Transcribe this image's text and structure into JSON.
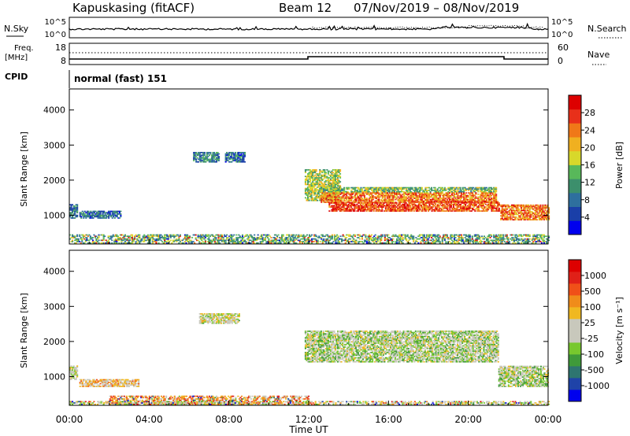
{
  "header": {
    "station": "Kapuskasing (fitACF)",
    "beam": "Beam 12",
    "dates": "07/Nov/2019 – 08/Nov/2019"
  },
  "nsky": {
    "left_label": "N.Sky",
    "right_label": "N.Search",
    "left_ticks": [
      "10^5",
      "10^0"
    ],
    "right_ticks": [
      "10^5",
      "10^0"
    ]
  },
  "freq": {
    "left_label_1": "Freq.",
    "left_label_2": "[MHz]",
    "right_label": "Nave",
    "left_ticks": [
      "18",
      "8"
    ],
    "right_ticks": [
      "60",
      "0"
    ]
  },
  "cpid": {
    "label": "CPID",
    "mode": "normal (fast) 151"
  },
  "colors": {
    "power_scale": [
      "#0000ee",
      "#1a3fa8",
      "#2e6f9e",
      "#3c8f6c",
      "#58b85a",
      "#d8d82a",
      "#f0b020",
      "#f07818",
      "#e8301a",
      "#dd0000"
    ],
    "velocity_scale": [
      "#0000ee",
      "#1f43a8",
      "#2e7570",
      "#3f9a3a",
      "#78c82e",
      "#c8c8bc",
      "#c8c8bc",
      "#f0b820",
      "#f08c1a",
      "#f05018",
      "#e02018",
      "#dd0000"
    ]
  },
  "chart_data": [
    {
      "type": "heatmap",
      "name": "power-panel",
      "ylabel": "Slant Range [km]",
      "ylim": [
        180,
        4600
      ],
      "yticks": [
        "1000",
        "2000",
        "3000",
        "4000"
      ],
      "x_ticks": [
        "00:00",
        "04:00",
        "08:00",
        "12:00",
        "16:00",
        "20:00",
        "00:00"
      ],
      "colorbar": {
        "label": "Power [dB]",
        "ticks": [
          "4",
          "8",
          "12",
          "16",
          "20",
          "24",
          "28"
        ]
      },
      "echo_regions": [
        {
          "t": [
            0.0,
            0.4
          ],
          "r": [
            900,
            1300
          ],
          "level": 0.3
        },
        {
          "t": [
            0.5,
            2.6
          ],
          "r": [
            900,
            1100
          ],
          "level": 0.25
        },
        {
          "t": [
            6.2,
            7.5
          ],
          "r": [
            2500,
            2800
          ],
          "level": 0.3
        },
        {
          "t": [
            7.8,
            8.8
          ],
          "r": [
            2500,
            2800
          ],
          "level": 0.25
        },
        {
          "t": [
            11.8,
            13.6
          ],
          "r": [
            1400,
            2300
          ],
          "level": 0.5
        },
        {
          "t": [
            12.6,
            21.4
          ],
          "r": [
            1350,
            1650
          ],
          "level": 0.75
        },
        {
          "t": [
            12.6,
            21.4
          ],
          "r": [
            1650,
            1800
          ],
          "level": 0.45
        },
        {
          "t": [
            13.0,
            17.0
          ],
          "r": [
            1100,
            1350
          ],
          "level": 0.85
        },
        {
          "t": [
            17.0,
            21.5
          ],
          "r": [
            1100,
            1400
          ],
          "level": 0.8
        },
        {
          "t": [
            21.6,
            24.0
          ],
          "r": [
            850,
            1300
          ],
          "level": 0.75
        },
        {
          "t": [
            0.0,
            24.0
          ],
          "r": [
            190,
            420
          ],
          "level": 0.4
        }
      ]
    },
    {
      "type": "heatmap",
      "name": "velocity-panel",
      "ylabel": "Slant Range [km]",
      "ylim": [
        180,
        4600
      ],
      "yticks": [
        "1000",
        "2000",
        "3000",
        "4000"
      ],
      "x_ticks": [
        "00:00",
        "04:00",
        "08:00",
        "12:00",
        "16:00",
        "20:00",
        "00:00"
      ],
      "xlabel": "Time UT",
      "colorbar": {
        "label": "Velocity [m s⁻¹]",
        "ticks": [
          "1000",
          "500",
          "100",
          "25",
          "-25",
          "-100",
          "-500",
          "-1000"
        ]
      },
      "echo_regions": [
        {
          "t": [
            0.0,
            0.4
          ],
          "r": [
            900,
            1300
          ],
          "level": 0.5
        },
        {
          "t": [
            0.5,
            3.5
          ],
          "r": [
            700,
            900
          ],
          "level": 0.6
        },
        {
          "t": [
            6.5,
            8.5
          ],
          "r": [
            2500,
            2800
          ],
          "level": 0.5
        },
        {
          "t": [
            11.8,
            21.5
          ],
          "r": [
            1400,
            2300
          ],
          "level": 0.45
        },
        {
          "t": [
            21.5,
            24.0
          ],
          "r": [
            700,
            1300
          ],
          "level": 0.45
        },
        {
          "t": [
            2.0,
            12.0
          ],
          "r": [
            190,
            450
          ],
          "level": 0.7
        },
        {
          "t": [
            0.0,
            24.0
          ],
          "r": [
            190,
            300
          ],
          "level": 0.5
        }
      ]
    }
  ]
}
